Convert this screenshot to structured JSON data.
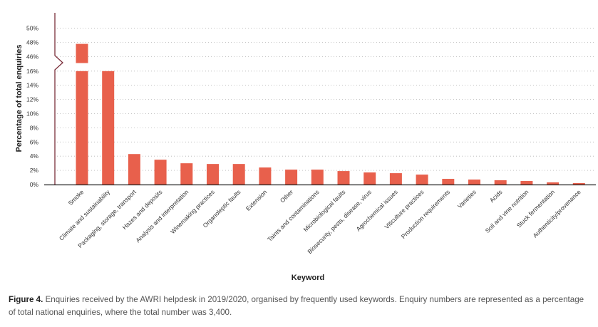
{
  "chart_data": {
    "type": "bar",
    "xlabel": "Keyword",
    "ylabel": "Percentage of total enquiries",
    "axis_break": {
      "lower_max": 16,
      "upper_min": 46,
      "upper_max": 50
    },
    "y_ticks": [
      "0%",
      "2%",
      "4%",
      "6%",
      "8%",
      "10%",
      "12%",
      "14%",
      "16%",
      "46%",
      "48%",
      "50%"
    ],
    "grid": "dotted horizontal",
    "bar_color": "#e8604c",
    "categories": [
      "Smoke",
      "Climate and sustainability",
      "Packaging, storage, transport",
      "Hazes and deposits",
      "Analysis and interpretation",
      "Winemaking practices",
      "Organoleptic faults",
      "Extension",
      "Other",
      "Taints and contaminations",
      "Microbiological faults",
      "Biosecurity, pests, disease, virus",
      "Agrochemical issues",
      "Viticulture practices",
      "Production requirements",
      "Varieties",
      "Acids",
      "Soil and vine nutrition",
      "Stuck fermentation",
      "Authenticity/provenance"
    ],
    "values": [
      47.8,
      16.1,
      4.3,
      3.5,
      3.0,
      2.9,
      2.9,
      2.4,
      2.1,
      2.1,
      1.9,
      1.7,
      1.6,
      1.4,
      0.8,
      0.7,
      0.6,
      0.5,
      0.3,
      0.2
    ]
  },
  "caption": {
    "label": "Figure 4.",
    "text": "Enquiries received by the AWRI helpdesk in 2019/2020, organised by frequently used keywords. Enquiry numbers are represented as a percentage of total national enquiries, where the total number was 3,400."
  }
}
